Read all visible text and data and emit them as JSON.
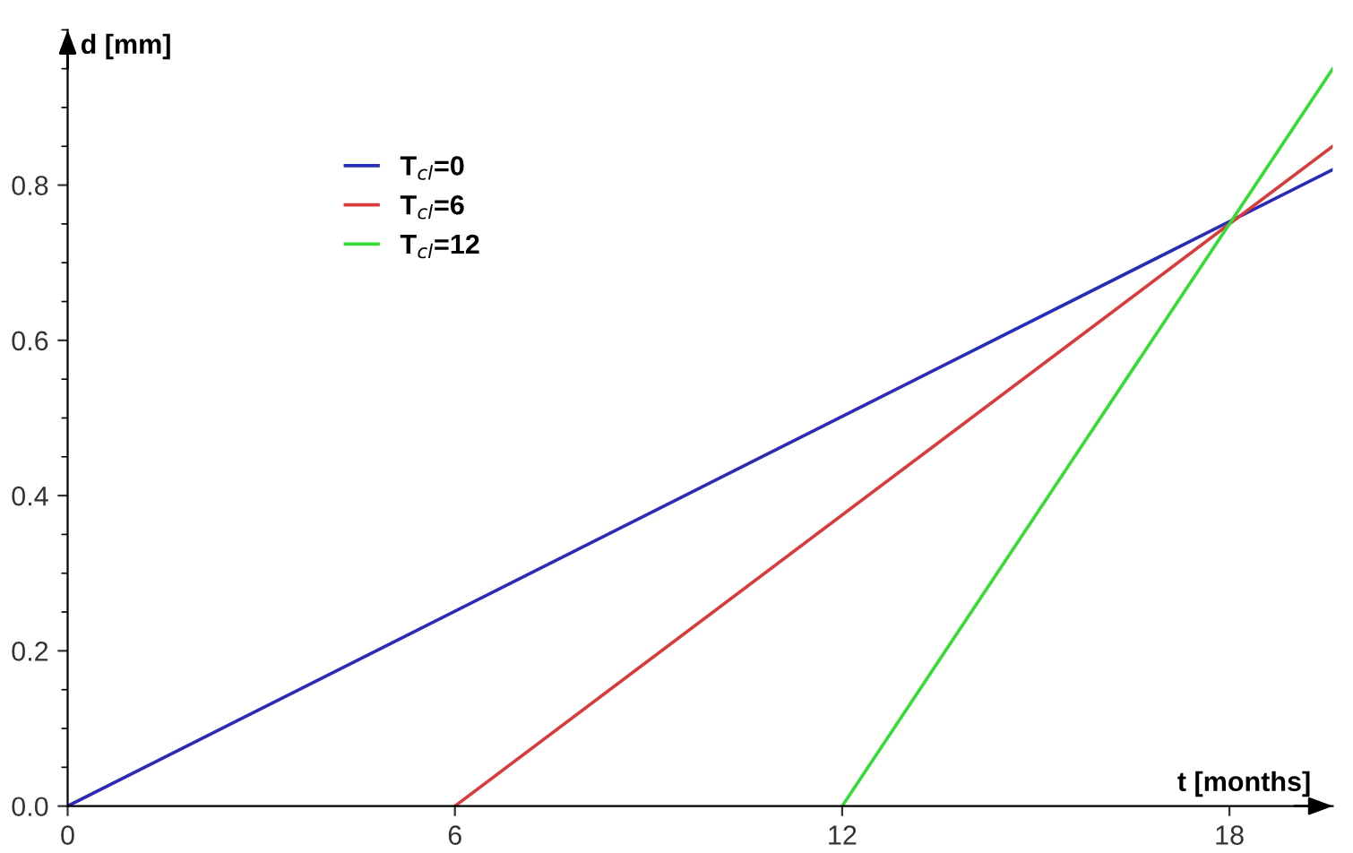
{
  "chart_data": {
    "type": "line",
    "xlabel": "t [months]",
    "ylabel": "d [mm]",
    "xlim": [
      0,
      19.6
    ],
    "ylim": [
      0,
      1.0
    ],
    "xticks": [
      0,
      6,
      12,
      18
    ],
    "yticks": [
      {
        "value": 0,
        "label": "0.0"
      },
      0.2,
      0.4,
      0.6,
      0.8
    ],
    "grid": false,
    "legend": "top left",
    "marker": "none",
    "line_style": "solid",
    "series": [
      {
        "name": "T$_{cl}$=0",
        "color": "#2b2bb8",
        "x": [
          0,
          19.6
        ],
        "values": [
          0,
          0.82
        ]
      },
      {
        "name": "T$_{cl}$=6",
        "color": "#d93a3a",
        "x": [
          6,
          19.6
        ],
        "values": [
          0,
          0.85
        ]
      },
      {
        "name": "T$_{cl}$=12",
        "color": "#33dd33",
        "x": [
          12,
          19.6
        ],
        "values": [
          0,
          0.95
        ]
      }
    ]
  }
}
